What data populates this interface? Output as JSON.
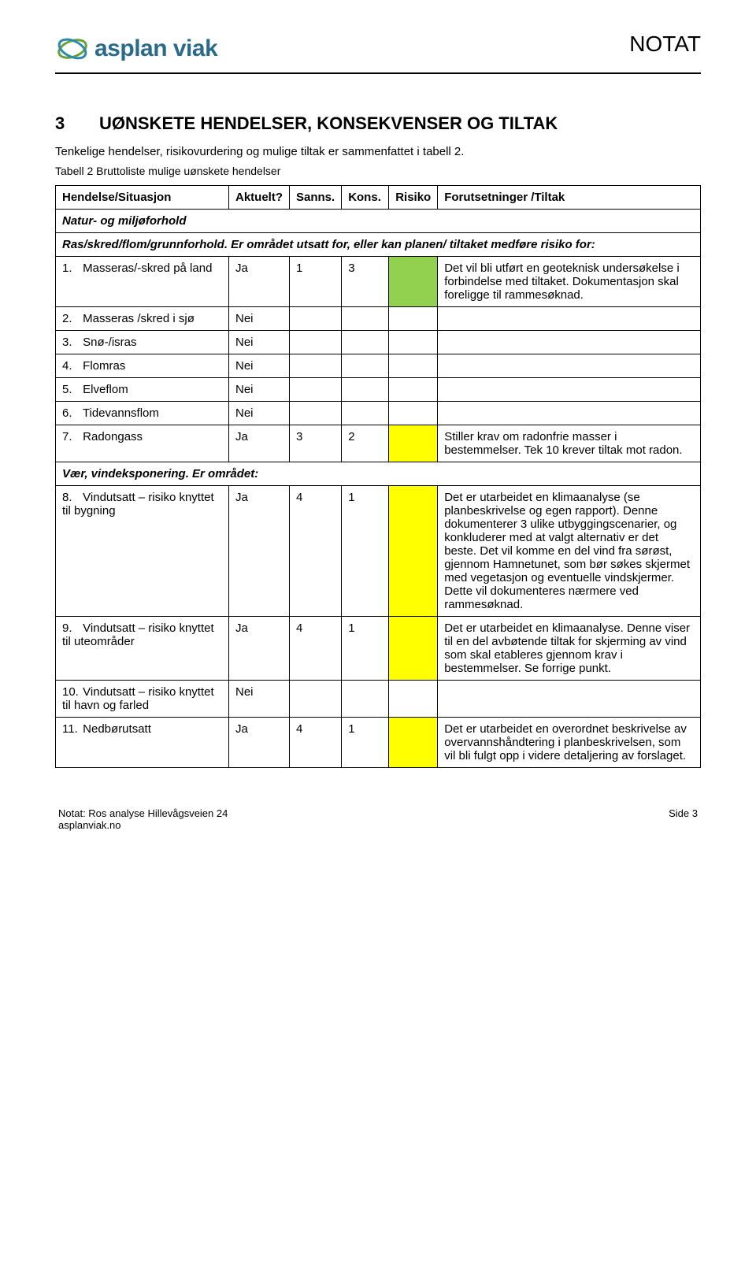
{
  "header": {
    "logo_text": "asplan viak",
    "logo_text_color": "#2a6a8a",
    "notat_label": "NOTAT"
  },
  "section": {
    "number": "3",
    "title": "UØNSKETE HENDELSER, KONSEKVENSER OG TILTAK",
    "intro": "Tenkelige hendelser, risikovurdering og mulige tiltak er sammenfattet i tabell 2.",
    "caption": "Tabell 2 Bruttoliste mulige uønskete hendelser"
  },
  "table": {
    "columns": {
      "situasjon": "Hendelse/Situasjon",
      "aktuelt": "Aktuelt?",
      "sanns": "Sanns.",
      "kons": "Kons.",
      "risiko": "Risiko",
      "tiltak": "Forutsetninger /Tiltak"
    },
    "colors": {
      "green": "#92d050",
      "yellow": "#ffff00",
      "border": "#000000",
      "bg": "#ffffff"
    },
    "section_a": {
      "label": "Natur- og miljøforhold",
      "subhead": "Ras/skred/flom/grunnforhold. Er området utsatt for, eller kan planen/ tiltaket medføre risiko for:"
    },
    "rows_a": [
      {
        "n": "1.",
        "name": "Masseras/-skred på land",
        "akt": "Ja",
        "sanns": "1",
        "kons": "3",
        "risk_color": "#92d050",
        "tiltak": "Det vil bli utført en geoteknisk undersøkelse i forbindelse med tiltaket. Dokumentasjon skal foreligge til rammesøknad."
      },
      {
        "n": "2.",
        "name": "Masseras /skred i sjø",
        "akt": "Nei",
        "sanns": "",
        "kons": "",
        "risk_color": "",
        "tiltak": ""
      },
      {
        "n": "3.",
        "name": "Snø-/isras",
        "akt": "Nei",
        "sanns": "",
        "kons": "",
        "risk_color": "",
        "tiltak": ""
      },
      {
        "n": "4.",
        "name": "Flomras",
        "akt": "Nei",
        "sanns": "",
        "kons": "",
        "risk_color": "",
        "tiltak": ""
      },
      {
        "n": "5.",
        "name": "Elveflom",
        "akt": "Nei",
        "sanns": "",
        "kons": "",
        "risk_color": "",
        "tiltak": ""
      },
      {
        "n": "6.",
        "name": "Tidevannsflom",
        "akt": "Nei",
        "sanns": "",
        "kons": "",
        "risk_color": "",
        "tiltak": ""
      },
      {
        "n": "7.",
        "name": "Radongass",
        "akt": "Ja",
        "sanns": "3",
        "kons": "2",
        "risk_color": "#ffff00",
        "tiltak": "Stiller krav om radonfrie masser i bestemmelser. Tek 10 krever tiltak mot radon."
      }
    ],
    "section_b": {
      "subhead": "Vær, vindeksponering. Er området:"
    },
    "rows_b": [
      {
        "n": "8.",
        "name": "Vindutsatt – risiko knyttet til bygning",
        "akt": "Ja",
        "sanns": "4",
        "kons": "1",
        "risk_color": "#ffff00",
        "tiltak": "Det er utarbeidet en klimaanalyse (se planbeskrivelse og egen rapport). Denne dokumenterer 3 ulike utbyggingscenarier, og konkluderer med at valgt alternativ er det beste. Det vil komme en del vind fra sørøst, gjennom Hamnetunet, som bør søkes skjermet med vegetasjon og eventuelle vindskjermer. Dette vil dokumenteres nærmere ved rammesøknad."
      },
      {
        "n": "9.",
        "name": "Vindutsatt – risiko knyttet til uteområder",
        "akt": "Ja",
        "sanns": "4",
        "kons": "1",
        "risk_color": "#ffff00",
        "tiltak": "Det er utarbeidet en klimaanalyse. Denne viser til en del avbøtende tiltak for skjerming av vind som skal etableres gjennom krav i bestemmelser. Se forrige punkt."
      },
      {
        "n": "10.",
        "name": "Vindutsatt – risiko knyttet til havn og farled",
        "akt": "Nei",
        "sanns": "",
        "kons": "",
        "risk_color": "",
        "tiltak": ""
      },
      {
        "n": "11.",
        "name": "Nedbørutsatt",
        "akt": "Ja",
        "sanns": "4",
        "kons": "1",
        "risk_color": "#ffff00",
        "tiltak": "Det er utarbeidet en overordnet beskrivelse av overvannshåndtering i planbeskrivelsen, som vil bli fulgt opp i videre detaljering av forslaget."
      }
    ]
  },
  "footer": {
    "left_line1": "Notat: Ros analyse Hillevågsveien 24",
    "left_line2": "asplanviak.no",
    "right": "Side 3"
  }
}
